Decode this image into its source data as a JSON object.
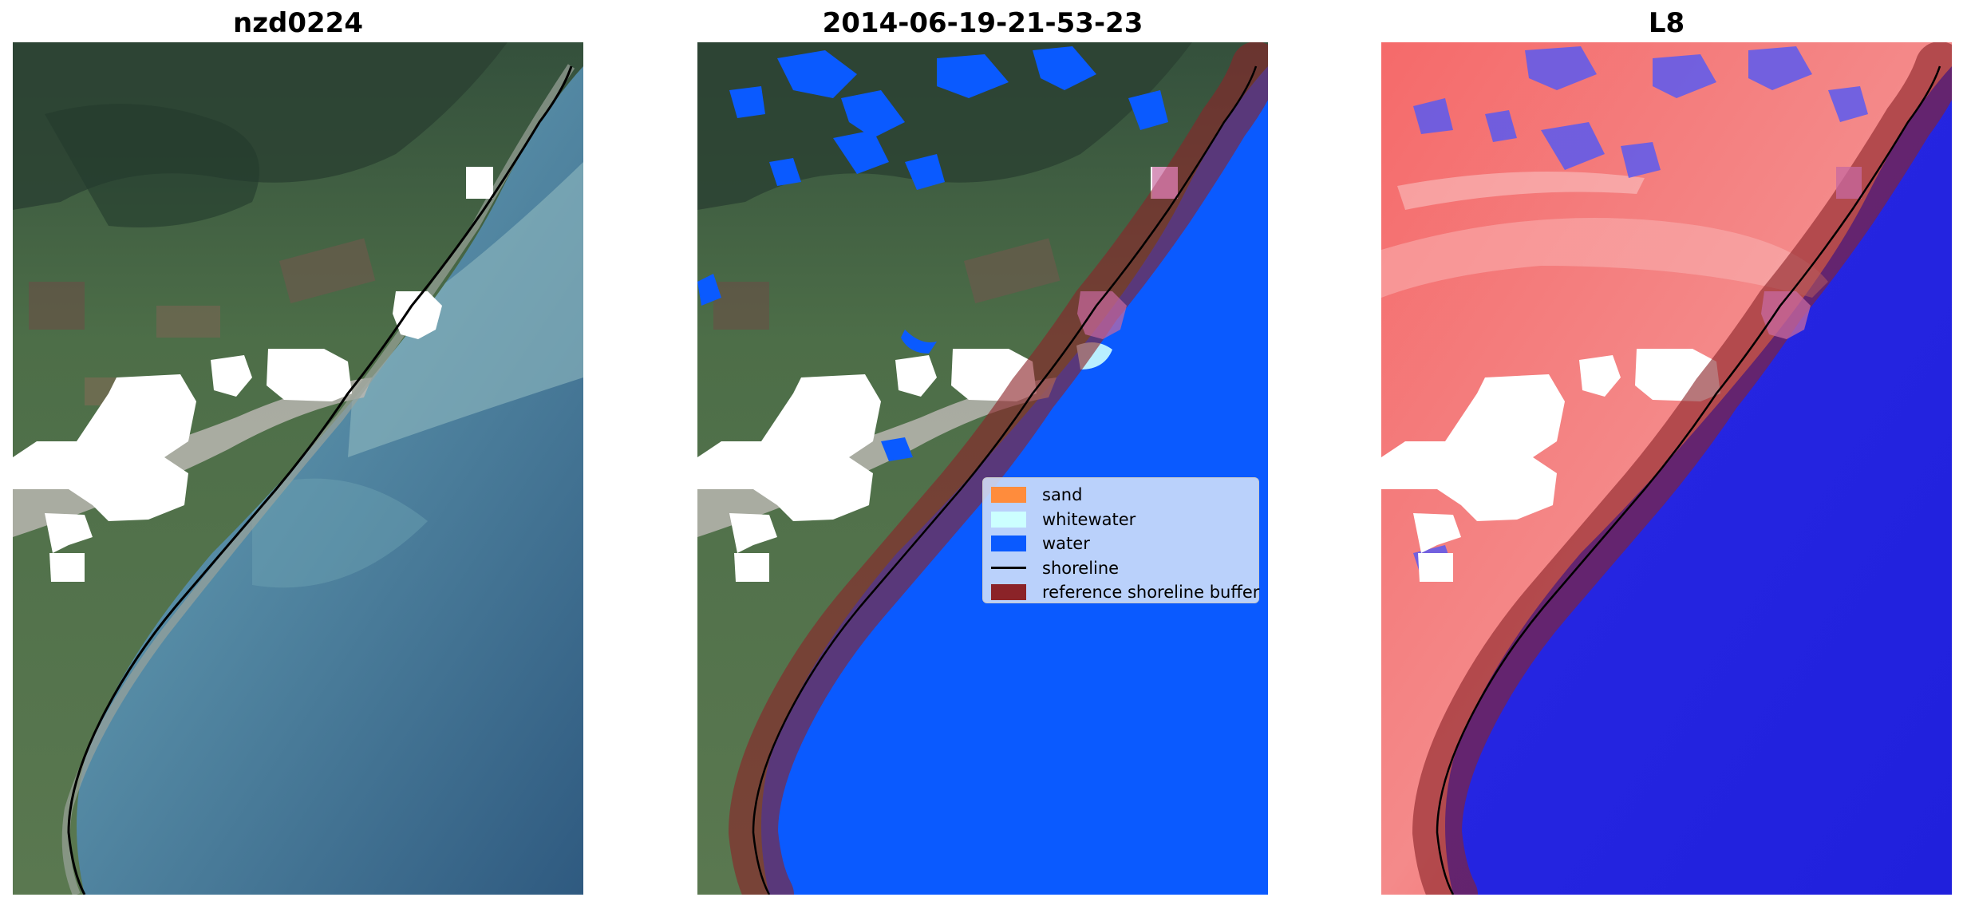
{
  "panels": [
    {
      "title": "nzd0224"
    },
    {
      "title": "2014-06-19-21-53-23"
    },
    {
      "title": "L8"
    }
  ],
  "legend": {
    "items": [
      {
        "label": "sand",
        "color": "#ff8c3c",
        "kind": "patch"
      },
      {
        "label": "whitewater",
        "color": "#ccffff",
        "kind": "patch"
      },
      {
        "label": "water",
        "color": "#0a5aff",
        "kind": "patch"
      },
      {
        "label": "shoreline",
        "color": "#000000",
        "kind": "line"
      },
      {
        "label": "reference shoreline buffer",
        "color": "#8b2328",
        "kind": "patch"
      }
    ]
  },
  "colors": {
    "land": "#4e6b4a",
    "sea_rgb": "#3a6c8d",
    "sea_turbid": "#7aaab5",
    "water_class": "#0a5aff",
    "index_land": "#f06060",
    "index_water": "#2222e8",
    "buffer": "#8b2328",
    "cloud_mask": "#ffffff",
    "shoreline": "#000000"
  }
}
